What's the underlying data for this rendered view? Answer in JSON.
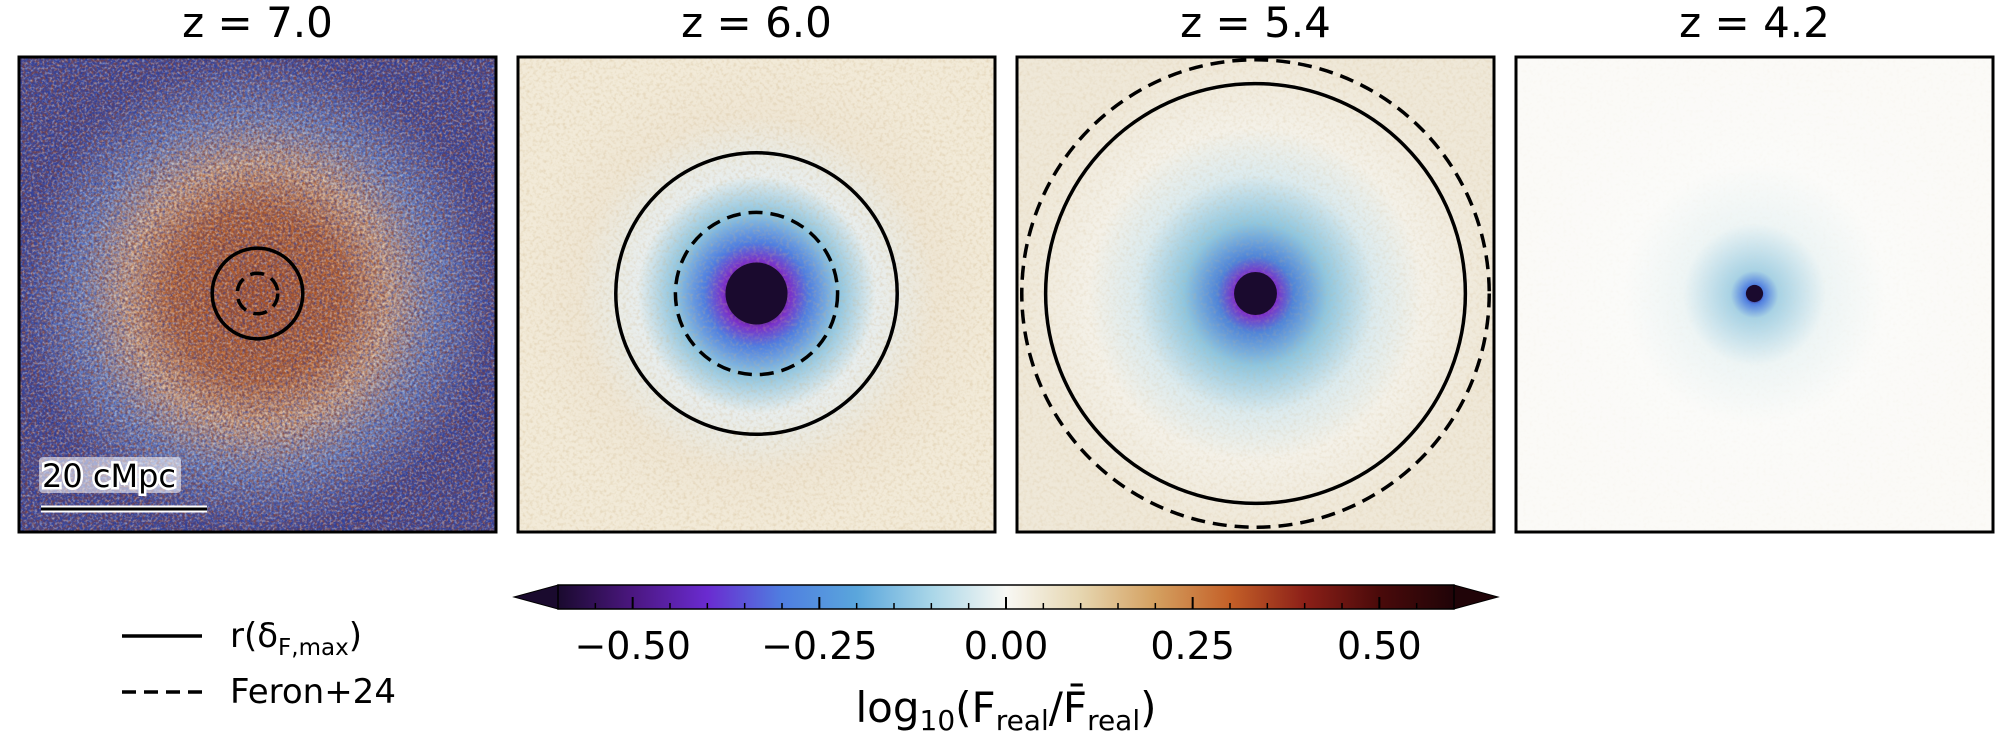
{
  "chart_data": {
    "type": "heatmap",
    "description_of_axes": "four stacked-flux maps centered on a source at different redshifts",
    "panels": [
      {
        "title": "z = 7.0",
        "z": 7.0,
        "palette": "noisy",
        "core_radius_frac": 0.0,
        "halo_radius_frac": 0.0,
        "r_solid_frac": 0.19,
        "r_dashed_frac": 0.085,
        "has_scalebar": true
      },
      {
        "title": "z = 6.0",
        "z": 6.0,
        "palette": "blue",
        "core_radius_frac": 0.065,
        "halo_radius_frac": 0.2,
        "r_solid_frac": 0.59,
        "r_dashed_frac": 0.34,
        "has_scalebar": false
      },
      {
        "title": "z = 5.4",
        "z": 5.4,
        "palette": "blue",
        "core_radius_frac": 0.045,
        "halo_radius_frac": 0.3,
        "r_solid_frac": 0.88,
        "r_dashed_frac": 0.98,
        "has_scalebar": false
      },
      {
        "title": "z = 4.2",
        "z": 4.2,
        "palette": "faint",
        "core_radius_frac": 0.018,
        "halo_radius_frac": 0.2,
        "r_solid_frac": 0.0,
        "r_dashed_frac": 0.0,
        "has_scalebar": false
      }
    ],
    "scalebar_label": "20 cMpc",
    "legend": [
      {
        "style": "solid",
        "label_main": "r(δ",
        "label_sub": "F,max",
        "label_close": ")"
      },
      {
        "style": "dashed",
        "label": "Feron+24"
      }
    ],
    "colorbar": {
      "range": [
        -0.6,
        0.6
      ],
      "extend": "both",
      "ticks": [
        -0.5,
        -0.25,
        0.0,
        0.25,
        0.5
      ],
      "tick_labels": [
        "−0.50",
        "−0.25",
        "0.00",
        "0.25",
        "0.50"
      ],
      "minor_tick_step": 0.05,
      "label_prefix": "log",
      "label_base": "10",
      "label_open": "(F",
      "label_sub1": "real",
      "label_mid": "/F̄",
      "label_sub2": "real",
      "label_close": ")"
    },
    "colormap": [
      "#1a0a2e",
      "#4b1780",
      "#6a2bd0",
      "#4f7ee0",
      "#5aa6dc",
      "#a9d6e8",
      "#f8f8f4",
      "#e6d6b0",
      "#d4a060",
      "#c46028",
      "#8c2018",
      "#4a0a0a",
      "#200408"
    ]
  }
}
